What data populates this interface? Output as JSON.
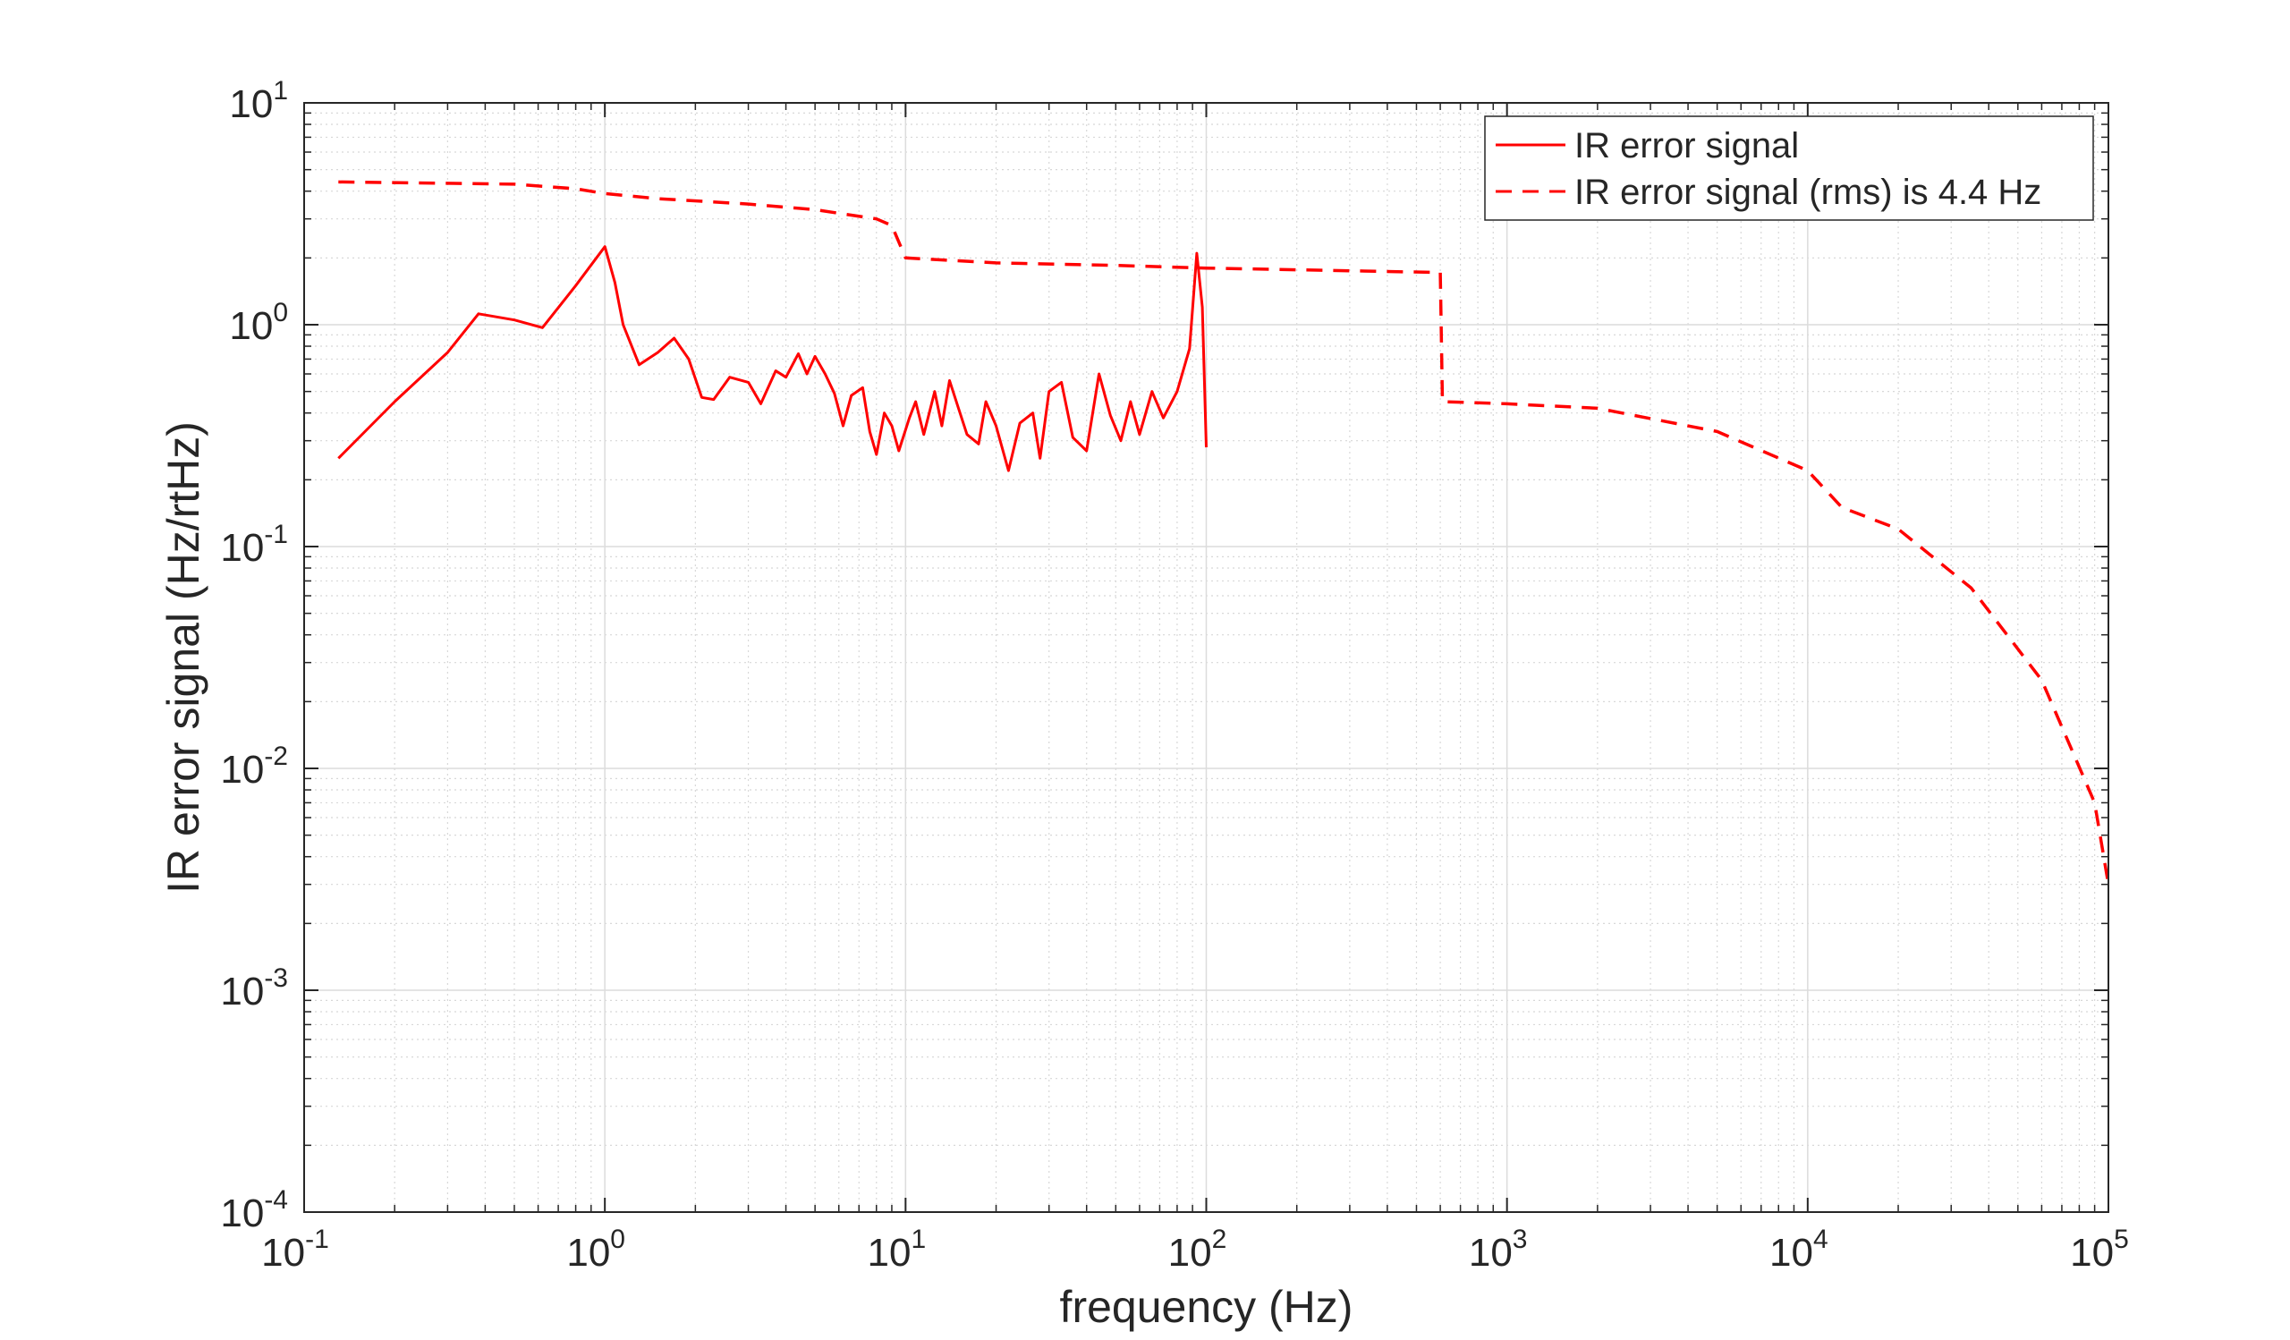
{
  "chart_data": {
    "type": "line",
    "xlabel": "frequency (Hz)",
    "ylabel": "IR error signal (Hz/rtHz)",
    "x_scale": "log",
    "y_scale": "log",
    "xlim": [
      0.1,
      100000
    ],
    "ylim": [
      0.0001,
      10
    ],
    "x_ticks": [
      {
        "value": 0.1,
        "base": "10",
        "exp": "-1"
      },
      {
        "value": 1,
        "base": "10",
        "exp": "0"
      },
      {
        "value": 10,
        "base": "10",
        "exp": "1"
      },
      {
        "value": 100,
        "base": "10",
        "exp": "2"
      },
      {
        "value": 1000,
        "base": "10",
        "exp": "3"
      },
      {
        "value": 10000,
        "base": "10",
        "exp": "4"
      },
      {
        "value": 100000,
        "base": "10",
        "exp": "5"
      }
    ],
    "y_ticks": [
      {
        "value": 0.0001,
        "base": "10",
        "exp": "-4"
      },
      {
        "value": 0.001,
        "base": "10",
        "exp": "-3"
      },
      {
        "value": 0.01,
        "base": "10",
        "exp": "-2"
      },
      {
        "value": 0.1,
        "base": "10",
        "exp": "-1"
      },
      {
        "value": 1,
        "base": "10",
        "exp": "0"
      },
      {
        "value": 10,
        "base": "10",
        "exp": "1"
      }
    ],
    "grid": true,
    "minor_grid": true,
    "legend_position": "top-right",
    "series": [
      {
        "name": "IR error signal",
        "style": "solid",
        "color": "#ff0000",
        "points": [
          [
            0.13,
            0.25
          ],
          [
            0.2,
            0.45
          ],
          [
            0.3,
            0.75
          ],
          [
            0.38,
            1.12
          ],
          [
            0.5,
            1.05
          ],
          [
            0.62,
            0.97
          ],
          [
            0.8,
            1.5
          ],
          [
            1.0,
            2.25
          ],
          [
            1.08,
            1.55
          ],
          [
            1.15,
            1.0
          ],
          [
            1.3,
            0.66
          ],
          [
            1.5,
            0.75
          ],
          [
            1.7,
            0.87
          ],
          [
            1.9,
            0.7
          ],
          [
            2.1,
            0.47
          ],
          [
            2.3,
            0.46
          ],
          [
            2.6,
            0.58
          ],
          [
            3.0,
            0.55
          ],
          [
            3.3,
            0.44
          ],
          [
            3.7,
            0.62
          ],
          [
            4.0,
            0.58
          ],
          [
            4.4,
            0.74
          ],
          [
            4.7,
            0.6
          ],
          [
            5.0,
            0.72
          ],
          [
            5.4,
            0.6
          ],
          [
            5.8,
            0.49
          ],
          [
            6.2,
            0.35
          ],
          [
            6.6,
            0.48
          ],
          [
            7.2,
            0.52
          ],
          [
            7.6,
            0.33
          ],
          [
            8.0,
            0.26
          ],
          [
            8.5,
            0.4
          ],
          [
            9.0,
            0.35
          ],
          [
            9.5,
            0.27
          ],
          [
            10.3,
            0.38
          ],
          [
            10.8,
            0.45
          ],
          [
            11.5,
            0.32
          ],
          [
            12.5,
            0.5
          ],
          [
            13.2,
            0.35
          ],
          [
            14.0,
            0.56
          ],
          [
            15.0,
            0.42
          ],
          [
            16.0,
            0.32
          ],
          [
            17.5,
            0.29
          ],
          [
            18.5,
            0.45
          ],
          [
            20.0,
            0.35
          ],
          [
            22.0,
            0.22
          ],
          [
            24.0,
            0.36
          ],
          [
            26.5,
            0.4
          ],
          [
            28.0,
            0.25
          ],
          [
            30.0,
            0.5
          ],
          [
            33.0,
            0.55
          ],
          [
            36.0,
            0.31
          ],
          [
            40.0,
            0.27
          ],
          [
            44.0,
            0.6
          ],
          [
            48.0,
            0.39
          ],
          [
            52.0,
            0.3
          ],
          [
            56.0,
            0.45
          ],
          [
            60.0,
            0.32
          ],
          [
            66.0,
            0.5
          ],
          [
            72.0,
            0.38
          ],
          [
            80.0,
            0.5
          ],
          [
            88.0,
            0.78
          ],
          [
            93.0,
            2.1
          ],
          [
            97.0,
            1.2
          ],
          [
            100.0,
            0.28
          ]
        ]
      },
      {
        "name": "IR error signal (rms) is 4.4 Hz",
        "style": "dashed",
        "color": "#ff0000",
        "points": [
          [
            0.13,
            4.4
          ],
          [
            0.5,
            4.3
          ],
          [
            0.8,
            4.1
          ],
          [
            1.0,
            3.9
          ],
          [
            1.5,
            3.7
          ],
          [
            3.0,
            3.5
          ],
          [
            5.0,
            3.3
          ],
          [
            8.0,
            3.0
          ],
          [
            9.0,
            2.8
          ],
          [
            10.0,
            2.0
          ],
          [
            20.0,
            1.9
          ],
          [
            50.0,
            1.85
          ],
          [
            100.0,
            1.8
          ],
          [
            300.0,
            1.75
          ],
          [
            600.0,
            1.72
          ],
          [
            610.0,
            0.45
          ],
          [
            1000.0,
            0.44
          ],
          [
            2000.0,
            0.42
          ],
          [
            5000.0,
            0.33
          ],
          [
            10000.0,
            0.22
          ],
          [
            13000.0,
            0.15
          ],
          [
            20000.0,
            0.12
          ],
          [
            35000.0,
            0.065
          ],
          [
            60000.0,
            0.025
          ],
          [
            90000.0,
            0.007
          ],
          [
            100000.0,
            0.003
          ]
        ]
      }
    ]
  }
}
